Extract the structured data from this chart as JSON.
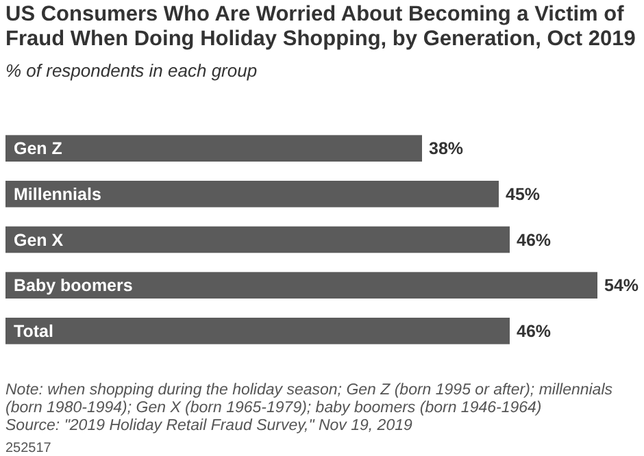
{
  "chart_data": {
    "type": "bar",
    "orientation": "horizontal",
    "title": "US Consumers Who Are Worried About Becoming a Victim of Fraud When Doing Holiday Shopping, by Generation, Oct 2019",
    "subtitle": "% of respondents in each group",
    "categories": [
      "Gen Z",
      "Millennials",
      "Gen X",
      "Baby boomers",
      "Total"
    ],
    "values": [
      38,
      45,
      46,
      54,
      46
    ],
    "color": "#5b5b5b",
    "value_labels": [
      "38%",
      "45%",
      "46%",
      "54%",
      "46%"
    ],
    "annotations": [
      "Note: when shopping during the holiday season; Gen Z (born 1995 or after); millennials (born 1980-1994); Gen X (born 1965-1979); baby boomers (born 1946-1964)",
      "Source: \"2019 Holiday Retail Fraud Survey,\" Nov 19, 2019",
      "252517"
    ]
  }
}
